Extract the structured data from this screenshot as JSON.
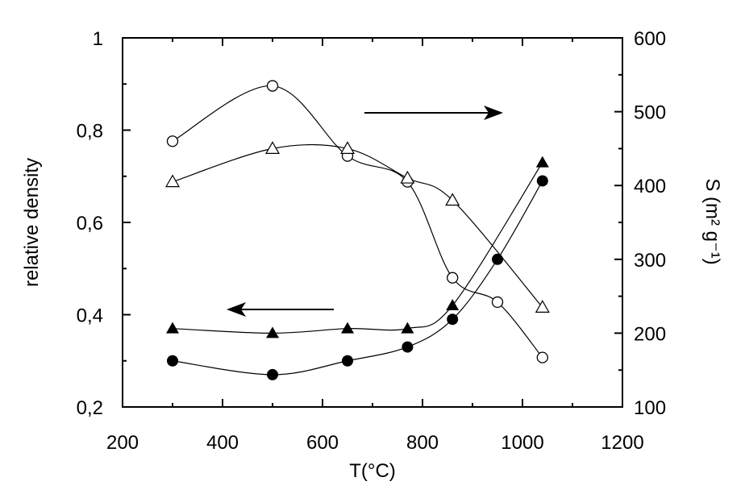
{
  "chart_data": {
    "type": "scatter",
    "xlabel": "T(°C)",
    "ylabel_left": "relative density",
    "ylabel_right": "S (m² g⁻¹)",
    "xlim": [
      200,
      1200
    ],
    "ylim_left": [
      0.2,
      1.0
    ],
    "ylim_right": [
      100,
      600
    ],
    "x_ticks": [
      200,
      400,
      600,
      800,
      1000,
      1200
    ],
    "x_tick_labels": [
      "200",
      "400",
      "600",
      "800",
      "1000",
      "1200"
    ],
    "y_left_ticks": [
      0.2,
      0.4,
      0.6,
      0.8,
      1.0
    ],
    "y_left_tick_labels": [
      "0,2",
      "0,4",
      "0,6",
      "0,8",
      "1"
    ],
    "y_right_ticks": [
      100,
      200,
      300,
      400,
      500,
      600
    ],
    "y_right_tick_labels": [
      "100",
      "200",
      "300",
      "400",
      "500",
      "600"
    ],
    "grid": false,
    "series": [
      {
        "axis": "left",
        "marker": "filled-triangle",
        "x": [
          300,
          500,
          650,
          770,
          860,
          1040
        ],
        "y": [
          0.37,
          0.36,
          0.37,
          0.37,
          0.42,
          0.73
        ]
      },
      {
        "axis": "left",
        "marker": "filled-circle",
        "x": [
          300,
          500,
          650,
          770,
          860,
          950,
          1040
        ],
        "y": [
          0.3,
          0.27,
          0.3,
          0.33,
          0.39,
          0.52,
          0.69
        ]
      },
      {
        "axis": "right",
        "marker": "open-circle",
        "x": [
          300,
          500,
          650,
          770,
          860,
          950,
          1040
        ],
        "y": [
          460,
          535,
          440,
          405,
          275,
          242,
          167
        ]
      },
      {
        "axis": "right",
        "marker": "open-triangle",
        "x": [
          300,
          500,
          650,
          770,
          860,
          1040
        ],
        "y": [
          405,
          450,
          450,
          410,
          380,
          235
        ]
      }
    ],
    "annotations": [
      {
        "type": "arrow",
        "direction": "right",
        "meaning": "right axis"
      },
      {
        "type": "arrow",
        "direction": "left",
        "meaning": "left axis"
      }
    ]
  }
}
